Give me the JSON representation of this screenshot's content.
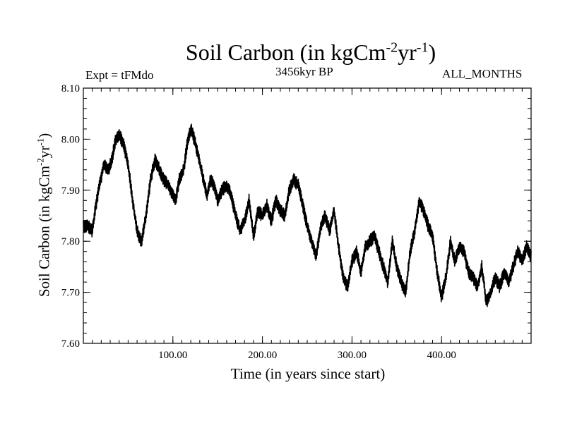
{
  "chart": {
    "title_main": "Soil Carbon (in kgCm",
    "title_sup1": "-2",
    "title_mid": "yr",
    "title_sup2": "-1",
    "title_end": ")",
    "expt_label": "Expt = tFMdo",
    "subtitle": "3456kyr BP",
    "months_label": "ALL_MONTHS",
    "xlabel": "Time (in years since start)",
    "ylabel_main": "Soil Carbon (in kgCm",
    "ylabel_sup1": "-2",
    "ylabel_mid": "yr",
    "ylabel_sup2": "-1",
    "ylabel_end": ")"
  },
  "chart_data": {
    "type": "line",
    "title": "Soil Carbon (in kgCm-2yr-1)",
    "subtitle": "3456kyr BP",
    "xlabel": "Time (in years since start)",
    "ylabel": "Soil Carbon (in kgCm-2yr-1)",
    "xlim": [
      0,
      500
    ],
    "ylim": [
      7.6,
      8.1
    ],
    "x_ticks": [
      100,
      200,
      300,
      400
    ],
    "x_tick_labels": [
      "100.00",
      "200.00",
      "300.00",
      "400.00"
    ],
    "y_ticks": [
      7.6,
      7.7,
      7.8,
      7.9,
      8.0,
      8.1
    ],
    "y_tick_labels": [
      "7.60",
      "7.70",
      "7.80",
      "7.90",
      "8.00",
      "8.10"
    ],
    "band_half_width": 0.013,
    "series": [
      {
        "name": "tFMdo",
        "color": "#000000",
        "x": [
          0,
          5,
          10,
          14,
          18,
          23,
          28,
          32,
          36,
          40,
          45,
          50,
          55,
          60,
          65,
          70,
          75,
          80,
          85,
          90,
          95,
          100,
          103,
          107,
          112,
          116,
          120,
          124,
          128,
          133,
          138,
          142,
          146,
          150,
          155,
          160,
          165,
          170,
          175,
          180,
          185,
          190,
          195,
          200,
          205,
          210,
          215,
          220,
          225,
          230,
          235,
          240,
          245,
          250,
          255,
          260,
          265,
          270,
          275,
          280,
          285,
          290,
          295,
          300,
          305,
          310,
          315,
          320,
          325,
          330,
          335,
          340,
          345,
          350,
          355,
          360,
          365,
          370,
          375,
          380,
          385,
          390,
          395,
          400,
          405,
          410,
          415,
          420,
          425,
          430,
          435,
          440,
          445,
          450,
          455,
          460,
          465,
          470,
          475,
          480,
          485,
          490,
          495,
          500
        ],
        "y": [
          7.83,
          7.83,
          7.82,
          7.87,
          7.91,
          7.95,
          7.94,
          7.96,
          8.0,
          8.01,
          7.99,
          7.95,
          7.88,
          7.82,
          7.8,
          7.85,
          7.92,
          7.96,
          7.94,
          7.92,
          7.91,
          7.89,
          7.88,
          7.92,
          7.94,
          7.99,
          8.02,
          8.0,
          7.97,
          7.93,
          7.89,
          7.92,
          7.91,
          7.88,
          7.9,
          7.91,
          7.89,
          7.85,
          7.82,
          7.84,
          7.88,
          7.81,
          7.86,
          7.85,
          7.87,
          7.84,
          7.88,
          7.86,
          7.85,
          7.9,
          7.92,
          7.91,
          7.87,
          7.83,
          7.8,
          7.77,
          7.83,
          7.85,
          7.82,
          7.86,
          7.79,
          7.73,
          7.71,
          7.76,
          7.78,
          7.74,
          7.79,
          7.8,
          7.81,
          7.78,
          7.75,
          7.72,
          7.8,
          7.75,
          7.72,
          7.7,
          7.78,
          7.82,
          7.88,
          7.86,
          7.83,
          7.81,
          7.74,
          7.69,
          7.73,
          7.8,
          7.76,
          7.79,
          7.78,
          7.74,
          7.73,
          7.71,
          7.75,
          7.68,
          7.7,
          7.73,
          7.71,
          7.74,
          7.72,
          7.75,
          7.78,
          7.76,
          7.79,
          7.77
        ]
      }
    ]
  }
}
